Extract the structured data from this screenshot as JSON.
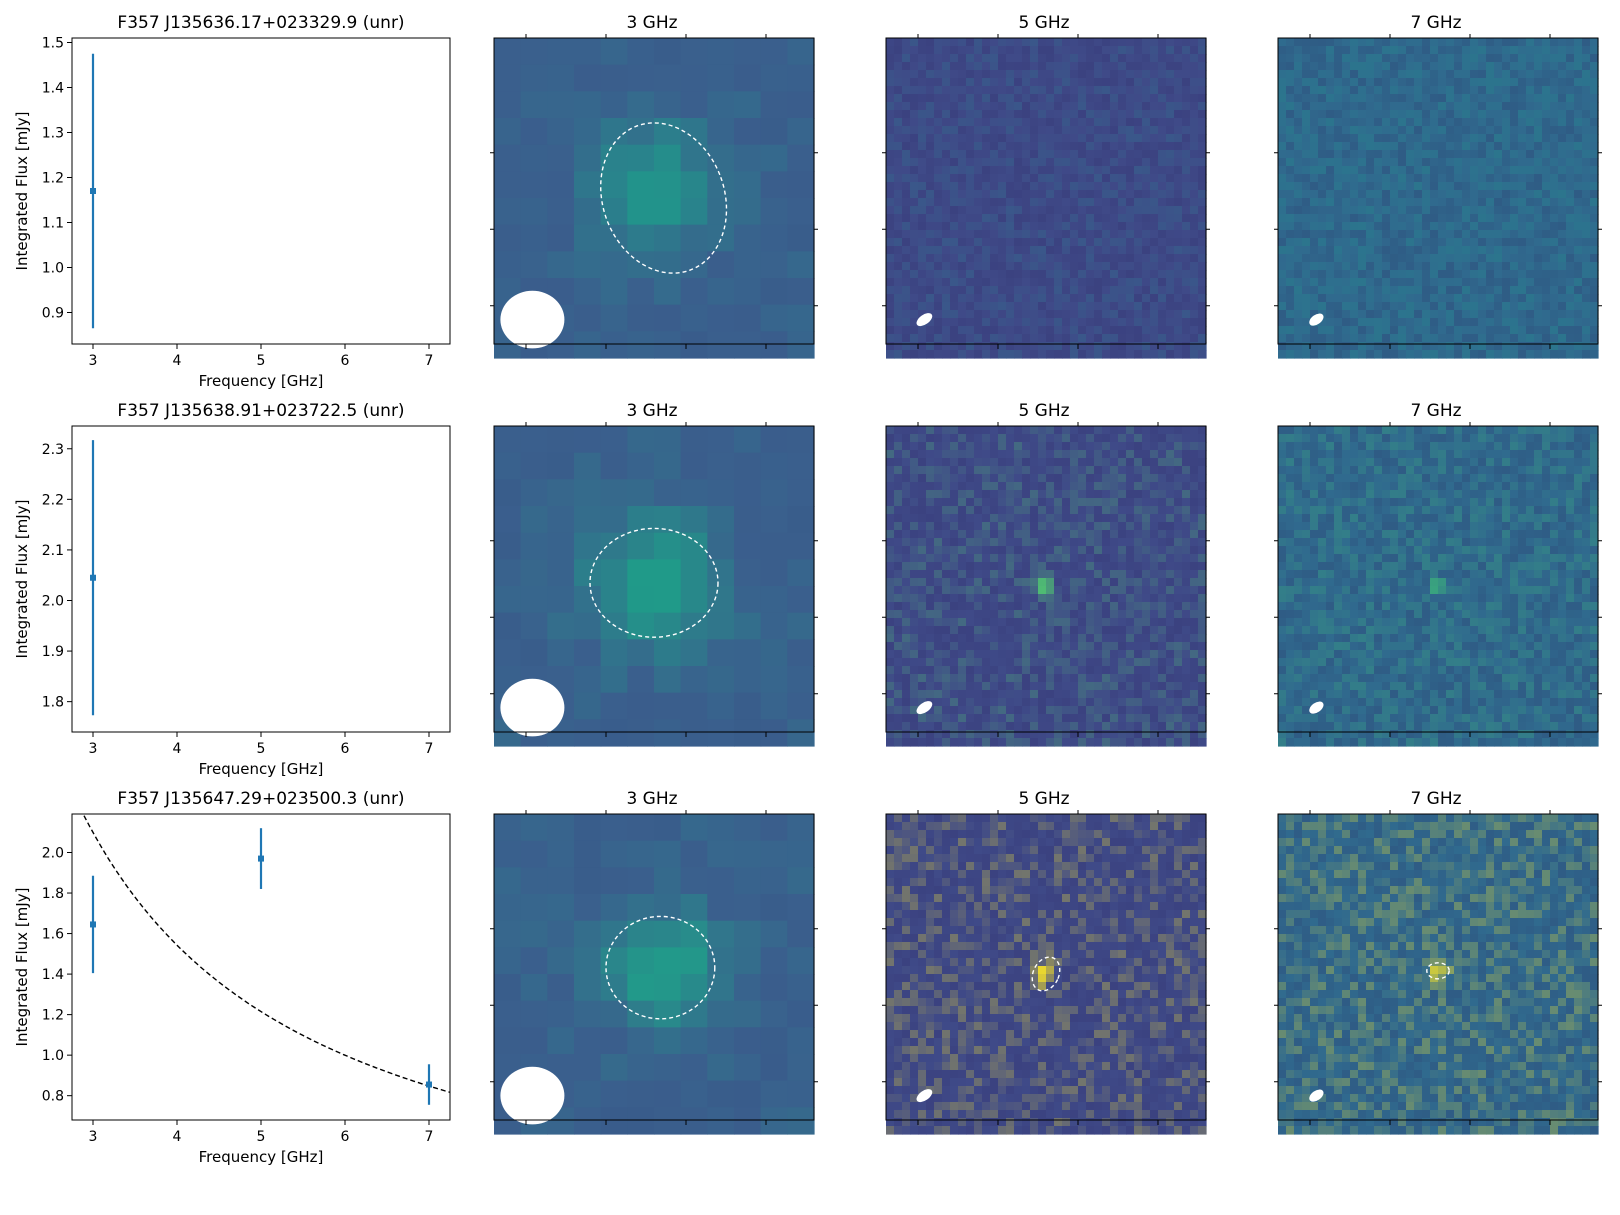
{
  "figure": {
    "background": "#ffffff",
    "series_color": "#1f77b4",
    "fit_color": "#000000"
  },
  "chart_data": [
    {
      "type": "scatter",
      "title": "F357 J135636.17+023329.9 (unr)",
      "xlabel": "Frequency [GHz]",
      "ylabel": "Integrated Flux [mJy]",
      "xlim": [
        2.75,
        7.25
      ],
      "ylim": [
        0.83,
        1.51
      ],
      "xticks": [
        3,
        4,
        5,
        6,
        7
      ],
      "yticks": [
        0.9,
        1.0,
        1.1,
        1.2,
        1.3,
        1.4,
        1.5
      ],
      "ytick_labels": [
        "0.9",
        "1.0",
        "1.1",
        "1.2",
        "1.3",
        "1.4",
        "1.5"
      ],
      "series": [
        {
          "points": [
            {
              "x": 3,
              "y": 1.17,
              "err": 0.305
            }
          ]
        }
      ],
      "fit": null,
      "images": [
        {
          "title": "3 GHz",
          "bg": "#3a5f8d",
          "source_color": "#22938b",
          "pixels": 12,
          "blob": [
            0.5,
            0.47,
            0.14
          ],
          "ellipse": [
            0.53,
            0.5,
            0.19,
            0.24,
            -20
          ],
          "beam": [
            0.12,
            0.88,
            0.1,
            0.09,
            0
          ],
          "seed": 11
        },
        {
          "title": "5 GHz",
          "bg": "#3f4a88",
          "source_color": "#2b7a8e",
          "pixels": 40,
          "blob": null,
          "ellipse": null,
          "beam": [
            0.12,
            0.88,
            0.028,
            0.015,
            -35
          ],
          "seed": 12
        },
        {
          "title": "7 GHz",
          "bg": "#306a8e",
          "source_color": "#21918c",
          "pixels": 40,
          "blob": null,
          "ellipse": null,
          "beam": [
            0.12,
            0.88,
            0.025,
            0.015,
            -35
          ],
          "seed": 13
        }
      ]
    },
    {
      "type": "scatter",
      "title": "F357 J135638.91+023722.5 (unr)",
      "xlabel": "Frequency [GHz]",
      "ylabel": "Integrated Flux [mJy]",
      "xlim": [
        2.75,
        7.25
      ],
      "ylim": [
        1.74,
        2.345
      ],
      "xticks": [
        3,
        4,
        5,
        6,
        7
      ],
      "yticks": [
        1.8,
        1.9,
        2.0,
        2.1,
        2.2,
        2.3
      ],
      "ytick_labels": [
        "1.8",
        "1.9",
        "2.0",
        "2.1",
        "2.2",
        "2.3"
      ],
      "series": [
        {
          "points": [
            {
              "x": 3,
              "y": 2.045,
              "err": 0.272
            }
          ]
        }
      ],
      "fit": null,
      "images": [
        {
          "title": "3 GHz",
          "bg": "#3a5f8d",
          "source_color": "#209a89",
          "pixels": 12,
          "blob": [
            0.51,
            0.5,
            0.15
          ],
          "ellipse": [
            0.5,
            0.49,
            0.2,
            0.17,
            0
          ],
          "beam": [
            0.12,
            0.88,
            0.1,
            0.09,
            0
          ],
          "seed": 21
        },
        {
          "title": "5 GHz",
          "bg": "#3f4a88",
          "source_color": "#4fbb73",
          "pixels": 40,
          "blob": [
            0.49,
            0.5,
            0.02
          ],
          "ellipse": null,
          "beam": [
            0.12,
            0.88,
            0.028,
            0.015,
            -35
          ],
          "seed": 22
        },
        {
          "title": "7 GHz",
          "bg": "#306a8e",
          "source_color": "#3cb47a",
          "pixels": 40,
          "blob": [
            0.5,
            0.5,
            0.015
          ],
          "ellipse": null,
          "beam": [
            0.12,
            0.88,
            0.025,
            0.015,
            -35
          ],
          "seed": 23
        }
      ]
    },
    {
      "type": "scatter",
      "title": "F357 J135647.29+023500.3 (unr)",
      "xlabel": "Frequency [GHz]",
      "ylabel": "Integrated Flux [mJy]",
      "xlim": [
        2.75,
        7.25
      ],
      "ylim": [
        0.68,
        2.19
      ],
      "xticks": [
        3,
        4,
        5,
        6,
        7
      ],
      "yticks": [
        0.8,
        1.0,
        1.2,
        1.4,
        1.6,
        1.8,
        2.0
      ],
      "ytick_labels": [
        "0.8",
        "1.0",
        "1.2",
        "1.4",
        "1.6",
        "1.8",
        "2.0"
      ],
      "series": [
        {
          "points": [
            {
              "x": 3,
              "y": 1.645,
              "err": 0.24
            },
            {
              "x": 5,
              "y": 1.97,
              "err": 0.15
            },
            {
              "x": 7,
              "y": 0.855,
              "err": 0.1
            }
          ]
        }
      ],
      "fit": {
        "style": "dashed",
        "amplitude": 6.8,
        "index": -1.07,
        "x_range": [
          2.85,
          7.25
        ]
      },
      "images": [
        {
          "title": "3 GHz",
          "bg": "#3a5f8d",
          "source_color": "#22998a",
          "pixels": 12,
          "blob": [
            0.53,
            0.48,
            0.13
          ],
          "ellipse": [
            0.52,
            0.48,
            0.17,
            0.16,
            0
          ],
          "beam": [
            0.12,
            0.88,
            0.1,
            0.09,
            0
          ],
          "seed": 31
        },
        {
          "title": "5 GHz",
          "bg": "#3f4a88",
          "source_color": "#fde725",
          "pixels": 40,
          "blob": [
            0.49,
            0.5,
            0.022
          ],
          "ellipse": [
            0.5,
            0.5,
            0.04,
            0.055,
            25
          ],
          "beam": [
            0.12,
            0.88,
            0.028,
            0.015,
            -35
          ],
          "seed": 32
        },
        {
          "title": "7 GHz",
          "bg": "#306a8e",
          "source_color": "#fde725",
          "pixels": 40,
          "blob": [
            0.5,
            0.49,
            0.02
          ],
          "ellipse": [
            0.5,
            0.49,
            0.035,
            0.025,
            0
          ],
          "beam": [
            0.12,
            0.88,
            0.025,
            0.015,
            -35
          ],
          "seed": 33
        }
      ]
    }
  ]
}
